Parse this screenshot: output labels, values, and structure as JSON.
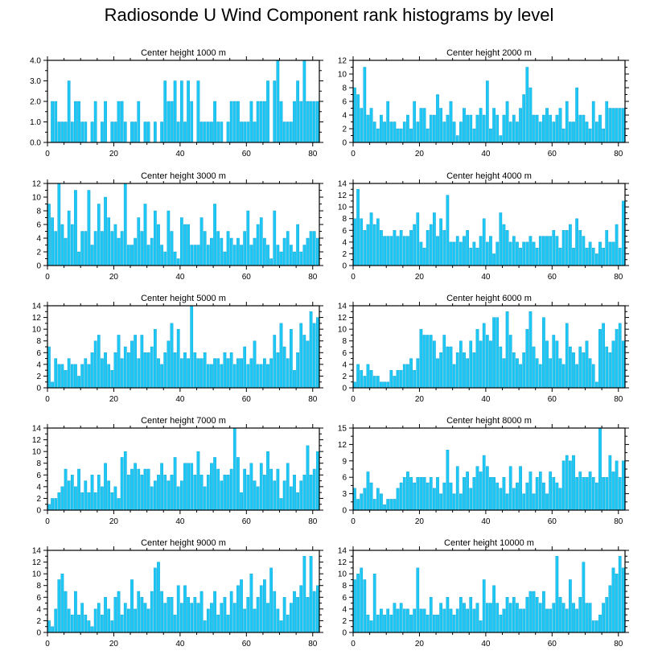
{
  "title": "Radiosonde U Wind Component rank histograms by level",
  "colors": {
    "bar_fill": "#1EC8F5",
    "bar_stroke": "#0A9CD0",
    "axis": "#000000"
  },
  "chart_data": [
    {
      "type": "bar",
      "title": "Center height 1000 m",
      "xlim": [
        0,
        82
      ],
      "ylim": [
        0,
        4
      ],
      "xticks": [
        0,
        20,
        40,
        60,
        80
      ],
      "yticks": [
        0,
        1,
        2,
        3,
        4
      ],
      "ytick_labels": [
        "0.0",
        "1.0",
        "2.0",
        "3.0",
        "4.0"
      ],
      "values": [
        0,
        2,
        2,
        1,
        1,
        1,
        3,
        1,
        2,
        2,
        1,
        1,
        0,
        1,
        2,
        0,
        1,
        2,
        0,
        1,
        1,
        2,
        2,
        1,
        0,
        1,
        1,
        2,
        0,
        1,
        1,
        0,
        1,
        0,
        1,
        3,
        2,
        2,
        3,
        1,
        3,
        1,
        3,
        2,
        0,
        3,
        1,
        1,
        1,
        1,
        2,
        1,
        1,
        0,
        1,
        2,
        2,
        2,
        1,
        1,
        1,
        2,
        1,
        2,
        2,
        2,
        3,
        0,
        3,
        4,
        2,
        1,
        1,
        1,
        2,
        3,
        2,
        4,
        2,
        2,
        2,
        2
      ]
    },
    {
      "type": "bar",
      "title": "Center height 2000 m",
      "xlim": [
        0,
        82
      ],
      "ylim": [
        0,
        12
      ],
      "xticks": [
        0,
        20,
        40,
        60,
        80
      ],
      "yticks": [
        0,
        2,
        4,
        6,
        8,
        10,
        12
      ],
      "ytick_labels": [
        "0",
        "2",
        "4",
        "6",
        "8",
        "10",
        "12"
      ],
      "values": [
        8,
        7,
        5,
        11,
        4,
        5,
        3,
        2,
        4,
        3,
        6,
        3,
        3,
        2,
        2,
        3,
        4,
        2,
        6,
        3,
        5,
        5,
        2,
        4,
        4,
        7,
        5,
        3,
        4,
        6,
        3,
        1,
        3,
        5,
        4,
        4,
        2,
        4,
        5,
        4,
        9,
        2,
        5,
        4,
        1,
        4,
        6,
        3,
        4,
        3,
        5,
        7,
        11,
        8,
        4,
        4,
        3,
        4,
        5,
        4,
        3,
        4,
        5,
        2,
        6,
        3,
        3,
        8,
        4,
        4,
        3,
        2,
        6,
        3,
        4,
        2,
        6,
        5,
        5,
        5,
        5,
        5
      ]
    },
    {
      "type": "bar",
      "title": "Center height 3000 m",
      "xlim": [
        0,
        82
      ],
      "ylim": [
        0,
        12
      ],
      "xticks": [
        0,
        20,
        40,
        60,
        80
      ],
      "yticks": [
        0,
        2,
        4,
        6,
        8,
        10,
        12
      ],
      "ytick_labels": [
        "0",
        "2",
        "4",
        "6",
        "8",
        "10",
        "12"
      ],
      "values": [
        9,
        7,
        5,
        12,
        6,
        4,
        8,
        6,
        11,
        2,
        5,
        5,
        11,
        3,
        5,
        9,
        5,
        10,
        7,
        5,
        6,
        4,
        5,
        12,
        3,
        3,
        4,
        7,
        5,
        9,
        3,
        4,
        8,
        6,
        3,
        2,
        8,
        5,
        2,
        1,
        7,
        6,
        6,
        3,
        3,
        3,
        7,
        5,
        3,
        4,
        9,
        5,
        4,
        2,
        5,
        4,
        3,
        4,
        3,
        5,
        8,
        3,
        4,
        6,
        7,
        4,
        3,
        1,
        8,
        3,
        2,
        4,
        5,
        3,
        2,
        6,
        2,
        3,
        4,
        5,
        5,
        4
      ]
    },
    {
      "type": "bar",
      "title": "Center height 4000 m",
      "xlim": [
        0,
        82
      ],
      "ylim": [
        0,
        14
      ],
      "xticks": [
        0,
        20,
        40,
        60,
        80
      ],
      "yticks": [
        0,
        2,
        4,
        6,
        8,
        10,
        12,
        14
      ],
      "ytick_labels": [
        "0",
        "2",
        "4",
        "6",
        "8",
        "10",
        "12",
        "14"
      ],
      "values": [
        8,
        13,
        8,
        6,
        7,
        9,
        7,
        8,
        6,
        5,
        5,
        5,
        6,
        5,
        6,
        5,
        5,
        6,
        7,
        9,
        4,
        3,
        6,
        7,
        9,
        5,
        8,
        6,
        12,
        4,
        4,
        5,
        4,
        5,
        6,
        3,
        4,
        3,
        5,
        8,
        4,
        5,
        2,
        4,
        9,
        7,
        6,
        4,
        5,
        4,
        3,
        4,
        4,
        5,
        4,
        3,
        5,
        5,
        5,
        5,
        6,
        5,
        3,
        6,
        6,
        7,
        3,
        8,
        6,
        5,
        3,
        4,
        3,
        2,
        4,
        3,
        6,
        4,
        4,
        7,
        3,
        11
      ]
    },
    {
      "type": "bar",
      "title": "Center height 5000 m",
      "xlim": [
        0,
        82
      ],
      "ylim": [
        0,
        14
      ],
      "xticks": [
        0,
        20,
        40,
        60,
        80
      ],
      "yticks": [
        0,
        2,
        4,
        6,
        8,
        10,
        12,
        14
      ],
      "ytick_labels": [
        "0",
        "2",
        "4",
        "6",
        "8",
        "10",
        "12",
        "14"
      ],
      "values": [
        7,
        1,
        5,
        4,
        4,
        3,
        5,
        4,
        4,
        2,
        4,
        5,
        4,
        6,
        8,
        9,
        5,
        6,
        4,
        3,
        6,
        9,
        5,
        7,
        6,
        8,
        9,
        5,
        9,
        6,
        6,
        7,
        10,
        5,
        4,
        6,
        8,
        11,
        6,
        10,
        5,
        6,
        5,
        14,
        6,
        5,
        5,
        6,
        4,
        4,
        5,
        5,
        4,
        6,
        5,
        6,
        4,
        5,
        5,
        7,
        4,
        5,
        8,
        4,
        4,
        5,
        4,
        5,
        9,
        6,
        11,
        7,
        5,
        10,
        3,
        6,
        11,
        9,
        8,
        13,
        11,
        12
      ]
    },
    {
      "type": "bar",
      "title": "Center height 6000 m",
      "xlim": [
        0,
        82
      ],
      "ylim": [
        0,
        14
      ],
      "xticks": [
        0,
        20,
        40,
        60,
        80
      ],
      "yticks": [
        0,
        2,
        4,
        6,
        8,
        10,
        12,
        14
      ],
      "ytick_labels": [
        "0",
        "2",
        "4",
        "6",
        "8",
        "10",
        "12",
        "14"
      ],
      "values": [
        1,
        4,
        3,
        2,
        4,
        3,
        2,
        2,
        1,
        1,
        1,
        3,
        2,
        3,
        3,
        4,
        4,
        5,
        3,
        5,
        10,
        9,
        9,
        9,
        8,
        5,
        6,
        9,
        7,
        7,
        4,
        6,
        8,
        6,
        5,
        8,
        6,
        10,
        8,
        11,
        9,
        8,
        12,
        12,
        7,
        5,
        13,
        9,
        6,
        5,
        4,
        6,
        10,
        13,
        7,
        5,
        4,
        12,
        8,
        5,
        9,
        8,
        5,
        4,
        11,
        7,
        6,
        4,
        7,
        6,
        8,
        5,
        4,
        1,
        10,
        11,
        7,
        6,
        8,
        10,
        11,
        8
      ]
    },
    {
      "type": "bar",
      "title": "Center height 7000 m",
      "xlim": [
        0,
        82
      ],
      "ylim": [
        0,
        14
      ],
      "xticks": [
        0,
        20,
        40,
        60,
        80
      ],
      "yticks": [
        0,
        2,
        4,
        6,
        8,
        10,
        12,
        14
      ],
      "ytick_labels": [
        "0",
        "2",
        "4",
        "6",
        "8",
        "10",
        "12",
        "14"
      ],
      "values": [
        1,
        2,
        2,
        3,
        4,
        7,
        5,
        6,
        4,
        7,
        3,
        5,
        3,
        6,
        3,
        6,
        4,
        8,
        5,
        3,
        4,
        2,
        9,
        10,
        6,
        7,
        8,
        7,
        6,
        7,
        7,
        4,
        5,
        6,
        8,
        6,
        5,
        6,
        9,
        4,
        5,
        8,
        8,
        8,
        6,
        10,
        6,
        4,
        6,
        8,
        9,
        7,
        5,
        6,
        6,
        7,
        14,
        9,
        3,
        7,
        6,
        8,
        5,
        4,
        8,
        6,
        10,
        7,
        5,
        7,
        2,
        5,
        8,
        4,
        6,
        3,
        5,
        6,
        11,
        6,
        7,
        10
      ]
    },
    {
      "type": "bar",
      "title": "Center height 8000 m",
      "xlim": [
        0,
        82
      ],
      "ylim": [
        0,
        15
      ],
      "xticks": [
        0,
        20,
        40,
        60,
        80
      ],
      "yticks": [
        0,
        3,
        6,
        9,
        12,
        15
      ],
      "ytick_labels": [
        "0",
        "3",
        "6",
        "9",
        "12",
        "15"
      ],
      "values": [
        4,
        2,
        3,
        4,
        7,
        5,
        2,
        4,
        3,
        1,
        2,
        2,
        2,
        4,
        5,
        6,
        7,
        6,
        5,
        6,
        6,
        6,
        5,
        6,
        4,
        6,
        3,
        5,
        11,
        5,
        3,
        8,
        3,
        6,
        7,
        4,
        6,
        8,
        7,
        10,
        8,
        6,
        6,
        5,
        4,
        6,
        3,
        8,
        4,
        5,
        8,
        3,
        5,
        7,
        3,
        6,
        7,
        5,
        3,
        7,
        6,
        5,
        4,
        9,
        10,
        9,
        10,
        6,
        7,
        6,
        6,
        7,
        6,
        5,
        15,
        6,
        6,
        10,
        7,
        9,
        6,
        9
      ]
    },
    {
      "type": "bar",
      "title": "Center height 9000 m",
      "xlim": [
        0,
        82
      ],
      "ylim": [
        0,
        14
      ],
      "xticks": [
        0,
        20,
        40,
        60,
        80
      ],
      "yticks": [
        0,
        2,
        4,
        6,
        8,
        10,
        12,
        14
      ],
      "ytick_labels": [
        "0",
        "2",
        "4",
        "6",
        "8",
        "10",
        "12",
        "14"
      ],
      "values": [
        2,
        1,
        4,
        9,
        10,
        7,
        4,
        3,
        7,
        3,
        5,
        3,
        2,
        1,
        4,
        5,
        3,
        6,
        4,
        2,
        6,
        7,
        3,
        5,
        4,
        9,
        4,
        7,
        6,
        5,
        4,
        7,
        11,
        12,
        7,
        5,
        6,
        6,
        3,
        8,
        5,
        8,
        6,
        5,
        6,
        5,
        7,
        2,
        4,
        5,
        7,
        3,
        5,
        6,
        3,
        7,
        5,
        8,
        9,
        4,
        6,
        10,
        4,
        6,
        8,
        9,
        5,
        11,
        7,
        4,
        2,
        6,
        3,
        5,
        7,
        6,
        8,
        13,
        6,
        13,
        7,
        8
      ]
    },
    {
      "type": "bar",
      "title": "Center height 10000 m",
      "xlim": [
        0,
        82
      ],
      "ylim": [
        0,
        14
      ],
      "xticks": [
        0,
        20,
        40,
        60,
        80
      ],
      "yticks": [
        0,
        2,
        4,
        6,
        8,
        10,
        12,
        14
      ],
      "ytick_labels": [
        "0",
        "2",
        "4",
        "6",
        "8",
        "10",
        "12",
        "14"
      ],
      "values": [
        9,
        10,
        11,
        9,
        3,
        2,
        10,
        3,
        4,
        3,
        4,
        3,
        5,
        4,
        5,
        4,
        4,
        3,
        4,
        11,
        4,
        4,
        3,
        6,
        3,
        3,
        5,
        4,
        6,
        4,
        3,
        4,
        6,
        5,
        4,
        6,
        4,
        5,
        2,
        9,
        5,
        5,
        8,
        5,
        3,
        4,
        6,
        5,
        6,
        5,
        4,
        4,
        6,
        7,
        7,
        6,
        5,
        7,
        4,
        4,
        5,
        13,
        6,
        5,
        4,
        9,
        5,
        4,
        6,
        12,
        5,
        5,
        2,
        2,
        3,
        5,
        6,
        8,
        11,
        10,
        13,
        11
      ]
    }
  ]
}
